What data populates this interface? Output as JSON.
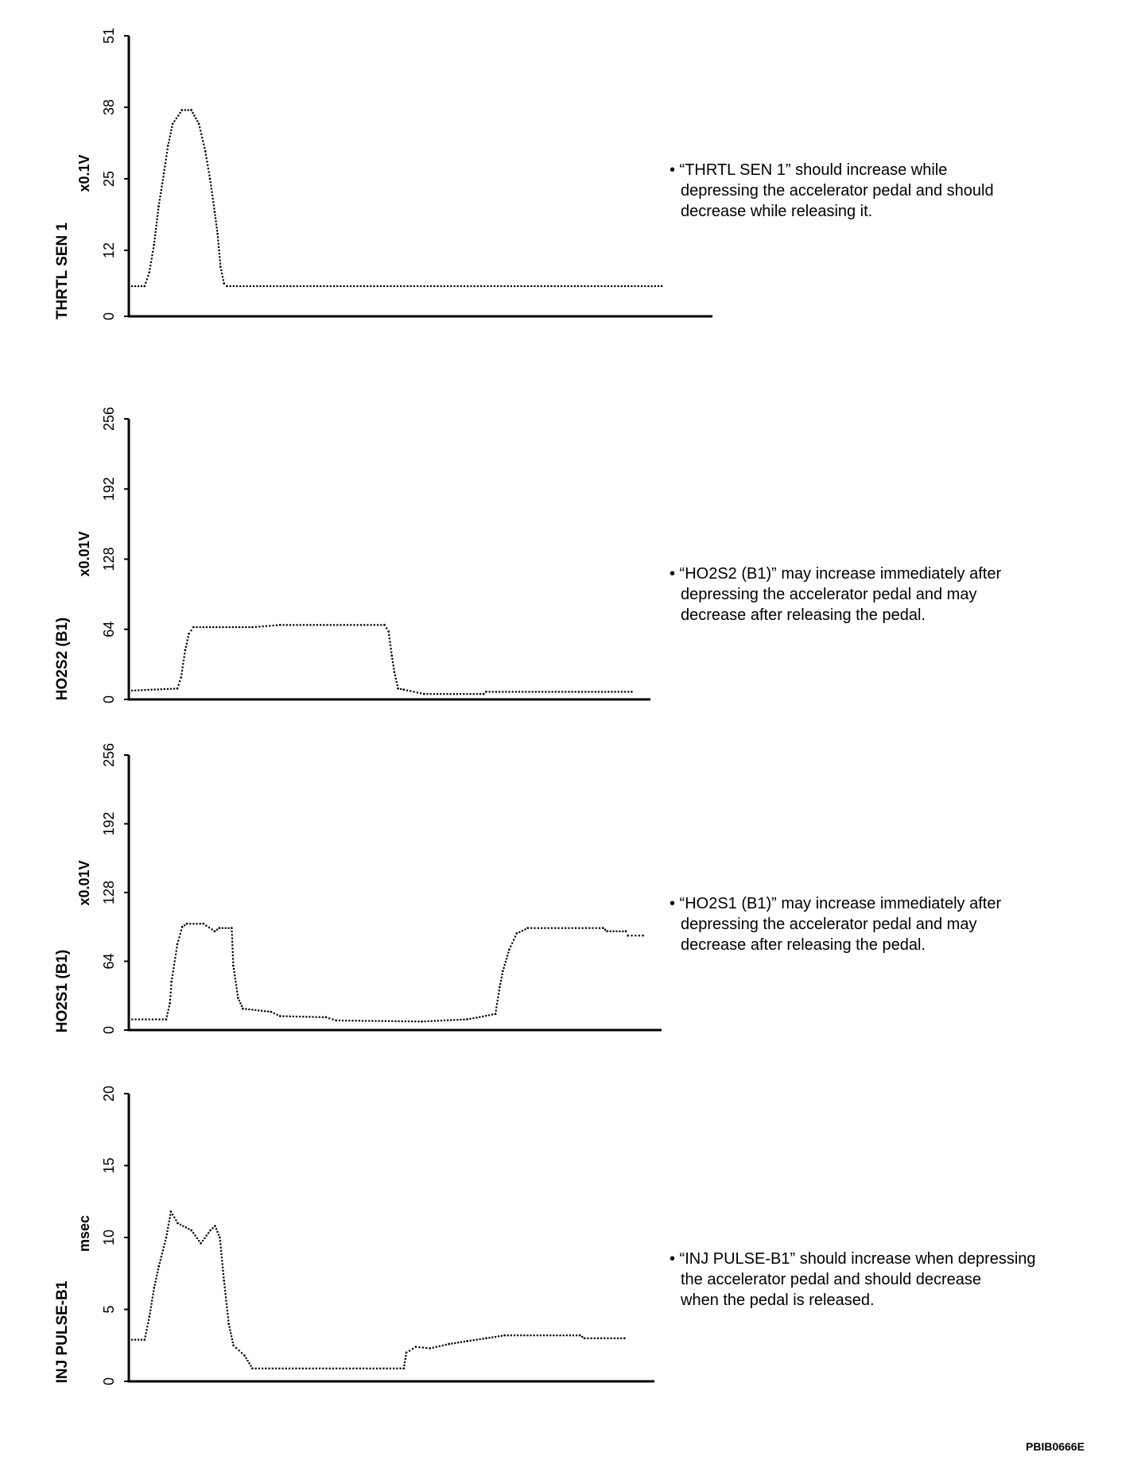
{
  "figure_id": "PBIB0666E",
  "chart_data": [
    {
      "type": "scatter",
      "title": "THRTL SEN 1",
      "ylabel": "THRTL SEN 1",
      "yunit": "x0.1V",
      "yticks": [
        "0",
        "12",
        "25",
        "38",
        "51"
      ],
      "ytick_values": [
        0,
        12,
        25,
        38,
        51
      ],
      "ylim": [
        0,
        51
      ],
      "xlim": [
        0,
        100
      ],
      "note": [
        "• “THRTL SEN 1” should increase while",
        "depressing the accelerator pedal and should",
        "decrease while releasing it."
      ],
      "points": [
        [
          0,
          5.5
        ],
        [
          2.7,
          5.5
        ],
        [
          3.5,
          8
        ],
        [
          4.3,
          13
        ],
        [
          5.1,
          20
        ],
        [
          6,
          26
        ],
        [
          6.7,
          31
        ],
        [
          7.5,
          35
        ],
        [
          9.1,
          37.5
        ],
        [
          10.7,
          37.5
        ],
        [
          12,
          35
        ],
        [
          13.1,
          30
        ],
        [
          13.9,
          25
        ],
        [
          14.7,
          19
        ],
        [
          15.2,
          15
        ],
        [
          15.7,
          9
        ],
        [
          16.3,
          6
        ],
        [
          16.8,
          5.5
        ],
        [
          91.3,
          5.5
        ]
      ]
    },
    {
      "type": "scatter",
      "title": "HO2S2 (B1)",
      "ylabel": "HO2S2 (B1)",
      "yunit": "x0.01V",
      "yticks": [
        "0",
        "64",
        "128",
        "192",
        "256"
      ],
      "ytick_values": [
        0,
        64,
        128,
        192,
        256
      ],
      "ylim": [
        0,
        256
      ],
      "xlim": [
        0,
        100
      ],
      "note": [
        "• “HO2S2 (B1)” may increase immediately after",
        "depressing the accelerator pedal and may",
        "decrease after releasing the pedal."
      ],
      "points": [
        [
          0,
          8
        ],
        [
          9.3,
          10
        ],
        [
          10,
          20
        ],
        [
          10.8,
          45
        ],
        [
          11.5,
          60
        ],
        [
          12.4,
          66
        ],
        [
          23.7,
          66
        ],
        [
          29,
          68
        ],
        [
          49,
          68
        ],
        [
          49.8,
          62
        ],
        [
          50.4,
          40
        ],
        [
          50.9,
          25
        ],
        [
          51.6,
          10
        ],
        [
          52.7,
          9
        ],
        [
          56.6,
          5
        ],
        [
          68,
          5
        ],
        [
          68.5,
          7
        ],
        [
          96.4,
          7
        ]
      ]
    },
    {
      "type": "scatter",
      "title": "HO2S1 (B1)",
      "ylabel": "HO2S1 (B1)",
      "yunit": "x0.01V",
      "yticks": [
        "0",
        "64",
        "128",
        "192",
        "256"
      ],
      "ytick_values": [
        0,
        64,
        128,
        192,
        256
      ],
      "ylim": [
        0,
        256
      ],
      "xlim": [
        0,
        100
      ],
      "note": [
        "• “HO2S1 (B1)” may increase immediately after",
        "depressing the accelerator pedal and may",
        "decrease after releasing the pedal."
      ],
      "points": [
        [
          0,
          10
        ],
        [
          7,
          10
        ],
        [
          7.7,
          25
        ],
        [
          8,
          45
        ],
        [
          9.1,
          80
        ],
        [
          10,
          96
        ],
        [
          10.9,
          99
        ],
        [
          14,
          99
        ],
        [
          16.1,
          92
        ],
        [
          17,
          95
        ],
        [
          19.3,
          95
        ],
        [
          19.6,
          60
        ],
        [
          20.5,
          30
        ],
        [
          21.4,
          20
        ],
        [
          26.7,
          17
        ],
        [
          28.4,
          13
        ],
        [
          37,
          12
        ],
        [
          38.9,
          9
        ],
        [
          55,
          8
        ],
        [
          63.5,
          10
        ],
        [
          68.8,
          15
        ],
        [
          69.6,
          40
        ],
        [
          70.2,
          55
        ],
        [
          71.4,
          75
        ],
        [
          72.8,
          90
        ],
        [
          74.9,
          95
        ],
        [
          89,
          95
        ],
        [
          89.8,
          92
        ],
        [
          93.3,
          92
        ],
        [
          93.7,
          88
        ],
        [
          96.5,
          88
        ]
      ]
    },
    {
      "type": "scatter",
      "title": "INJ PULSE-B1",
      "ylabel": "INJ PULSE-B1",
      "yunit": "msec",
      "yticks": [
        "0",
        "5",
        "10",
        "15",
        "20"
      ],
      "ytick_values": [
        0,
        5,
        10,
        15,
        20
      ],
      "ylim": [
        0,
        20
      ],
      "xlim": [
        0,
        100
      ],
      "note": [
        "• “INJ PULSE-B1” should increase when depressing",
        "the accelerator pedal and should decrease",
        "when the pedal is released."
      ],
      "points": [
        [
          0,
          2.9
        ],
        [
          3,
          2.9
        ],
        [
          3.9,
          4.5
        ],
        [
          4.8,
          6.5
        ],
        [
          5.7,
          8
        ],
        [
          7.1,
          10
        ],
        [
          8,
          11.8
        ],
        [
          9.3,
          11
        ],
        [
          11.9,
          10.5
        ],
        [
          13.7,
          9.6
        ],
        [
          15.5,
          10.5
        ],
        [
          16.4,
          10.8
        ],
        [
          17.3,
          10
        ],
        [
          18.1,
          7
        ],
        [
          19,
          4
        ],
        [
          19.9,
          2.5
        ],
        [
          22,
          1.8
        ],
        [
          23.5,
          0.9
        ],
        [
          52.3,
          0.9
        ],
        [
          52.8,
          2
        ],
        [
          54.6,
          2.4
        ],
        [
          57.3,
          2.3
        ],
        [
          60.9,
          2.6
        ],
        [
          64.4,
          2.8
        ],
        [
          68,
          3.0
        ],
        [
          71.5,
          3.2
        ],
        [
          85.8,
          3.2
        ],
        [
          86.7,
          3.0
        ],
        [
          94.3,
          3.0
        ]
      ]
    }
  ]
}
